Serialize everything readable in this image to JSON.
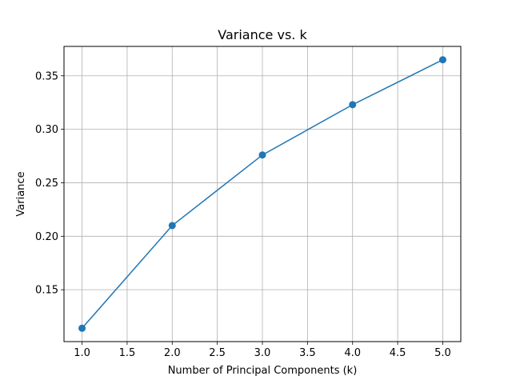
{
  "chart_data": {
    "type": "line",
    "title": "Variance vs. k",
    "xlabel": "Number of Principal Components (k)",
    "ylabel": "Variance",
    "x": [
      1,
      2,
      3,
      4,
      5
    ],
    "series": [
      {
        "values": [
          0.114,
          0.21,
          0.276,
          0.323,
          0.365
        ],
        "color": "#1f77b4",
        "marker": "circle"
      }
    ],
    "xlim": [
      0.8,
      5.2
    ],
    "ylim": [
      0.1015,
      0.3775
    ],
    "xticks": [
      "1.0",
      "1.5",
      "2.0",
      "2.5",
      "3.0",
      "3.5",
      "4.0",
      "4.5",
      "5.0"
    ],
    "yticks": [
      "0.15",
      "0.20",
      "0.25",
      "0.30",
      "0.35"
    ],
    "grid": true,
    "colors": {
      "line": "#1f77b4",
      "grid": "#b0b0b0"
    }
  }
}
